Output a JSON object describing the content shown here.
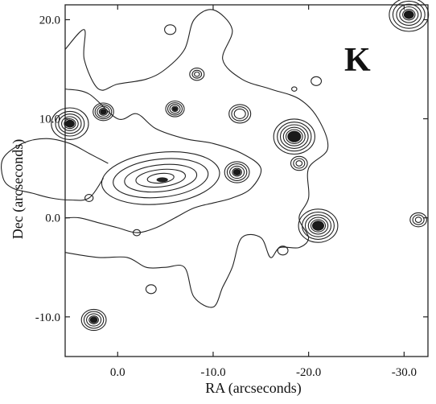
{
  "chart_data": {
    "type": "contour",
    "band_label": "K",
    "xlabel": "RA (arcseconds)",
    "ylabel": "Dec (arcseconds)",
    "xlim": [
      5.5,
      -32.5
    ],
    "ylim": [
      -14.0,
      21.5
    ],
    "xticks": [
      0,
      -10,
      -20,
      -30
    ],
    "xtick_labels": [
      "0.0",
      "-10.0",
      "-20.0",
      "-30.0"
    ],
    "yticks": [
      -10,
      0,
      10,
      20
    ],
    "ytick_labels": [
      "-10.0",
      "0.0",
      "10.0",
      "20.0"
    ],
    "grid": false,
    "diffuse_contours": [
      {
        "name": "outer-diffuse",
        "points": [
          [
            5.5,
            17
          ],
          [
            3.5,
            19
          ],
          [
            3.5,
            16
          ],
          [
            2,
            13
          ],
          [
            0,
            13.5
          ],
          [
            -3,
            14
          ],
          [
            -5,
            15
          ],
          [
            -7,
            17
          ],
          [
            -8,
            20
          ],
          [
            -10,
            21
          ],
          [
            -12,
            19
          ],
          [
            -11,
            16
          ],
          [
            -13,
            14
          ],
          [
            -16,
            13
          ],
          [
            -19,
            12
          ],
          [
            -21,
            10
          ],
          [
            -22,
            7
          ],
          [
            -20,
            5
          ],
          [
            -20,
            2
          ],
          [
            -19,
            0
          ],
          [
            -20,
            -2
          ],
          [
            -19,
            -3
          ],
          [
            -17,
            -3
          ],
          [
            -16,
            -4
          ],
          [
            -15,
            -2
          ],
          [
            -13,
            -2
          ],
          [
            -12,
            -5
          ],
          [
            -11,
            -7
          ],
          [
            -10,
            -9
          ],
          [
            -8,
            -8
          ],
          [
            -7,
            -5
          ],
          [
            -5,
            -5
          ],
          [
            -3,
            -5
          ],
          [
            -1,
            -4
          ],
          [
            2,
            -4
          ],
          [
            5.5,
            -3.5
          ]
        ]
      },
      {
        "name": "mid-diffuse",
        "points": [
          [
            5.5,
            13
          ],
          [
            3,
            12.5
          ],
          [
            0,
            10
          ],
          [
            -2,
            10.5
          ],
          [
            -4,
            9
          ],
          [
            -7,
            8
          ],
          [
            -10,
            7.5
          ],
          [
            -13,
            6.5
          ],
          [
            -15,
            5
          ],
          [
            -14,
            3
          ],
          [
            -12,
            2
          ],
          [
            -10,
            1.5
          ],
          [
            -8,
            1
          ],
          [
            -6,
            0
          ],
          [
            -4,
            -1
          ],
          [
            -2,
            -1.5
          ],
          [
            0,
            -1
          ],
          [
            2,
            -0.5
          ],
          [
            4,
            0
          ],
          [
            5.5,
            0
          ]
        ]
      },
      {
        "name": "central-ridge",
        "points": [
          [
            1.5,
            4
          ],
          [
            3,
            2
          ],
          [
            5,
            1.8
          ],
          [
            7,
            2
          ],
          [
            9,
            2.5
          ],
          [
            11,
            3
          ],
          [
            12,
            4
          ],
          [
            12,
            6
          ],
          [
            10,
            7.5
          ],
          [
            7.5,
            8
          ],
          [
            5,
            7.5
          ],
          [
            3,
            6.5
          ],
          [
            1,
            5.5
          ]
        ]
      }
    ],
    "central_blob": {
      "x": -4.5,
      "y": 4.0,
      "levels": [
        [
          6.2,
          2.7
        ],
        [
          5.0,
          2.0
        ],
        [
          3.8,
          1.4
        ],
        [
          2.6,
          0.9
        ],
        [
          1.4,
          0.5
        ]
      ]
    },
    "point_sources": [
      {
        "x": 5.0,
        "y": 9.5,
        "levels": [
          1.8,
          1.4,
          1.1,
          0.8,
          0.55
        ]
      },
      {
        "x": -30.5,
        "y": 20.5,
        "levels": [
          1.9,
          1.55,
          1.2,
          0.9,
          0.6
        ]
      },
      {
        "x": 1.5,
        "y": 10.7,
        "levels": [
          1.0,
          0.8,
          0.6,
          0.4
        ]
      },
      {
        "x": -18.5,
        "y": 8.2,
        "levels": [
          2.0,
          1.65,
          1.35,
          1.05,
          0.8
        ]
      },
      {
        "x": -12.5,
        "y": 4.6,
        "levels": [
          1.2,
          0.95,
          0.7,
          0.45
        ]
      },
      {
        "x": -12.8,
        "y": 10.5,
        "levels": [
          1.05,
          0.8,
          0.55
        ]
      },
      {
        "x": -6.0,
        "y": 11.0,
        "levels": [
          0.9,
          0.7,
          0.5,
          0.3
        ]
      },
      {
        "x": -8.3,
        "y": 14.5,
        "levels": [
          0.7,
          0.45,
          0.25
        ]
      },
      {
        "x": -21.0,
        "y": -0.8,
        "levels": [
          1.9,
          1.55,
          1.25,
          0.95,
          0.7
        ]
      },
      {
        "x": -19.0,
        "y": 5.5,
        "levels": [
          0.8,
          0.55,
          0.3
        ]
      },
      {
        "x": -31.5,
        "y": -0.2,
        "levels": [
          0.8,
          0.55,
          0.3
        ]
      },
      {
        "x": 2.5,
        "y": -10.3,
        "levels": [
          1.2,
          0.95,
          0.7,
          0.45
        ]
      },
      {
        "x": -17.3,
        "y": -3.3,
        "levels": [
          0.5
        ]
      },
      {
        "x": -20.8,
        "y": 13.8,
        "levels": [
          0.5
        ]
      },
      {
        "x": -18.5,
        "y": 13.0,
        "levels": [
          0.25
        ]
      },
      {
        "x": -5.5,
        "y": 19.0,
        "levels": [
          0.55
        ]
      },
      {
        "x": -3.5,
        "y": -7.2,
        "levels": [
          0.5
        ]
      },
      {
        "x": -2.0,
        "y": -1.5,
        "levels": [
          0.35
        ]
      },
      {
        "x": 3.0,
        "y": 2.0,
        "levels": [
          0.4
        ]
      }
    ]
  }
}
